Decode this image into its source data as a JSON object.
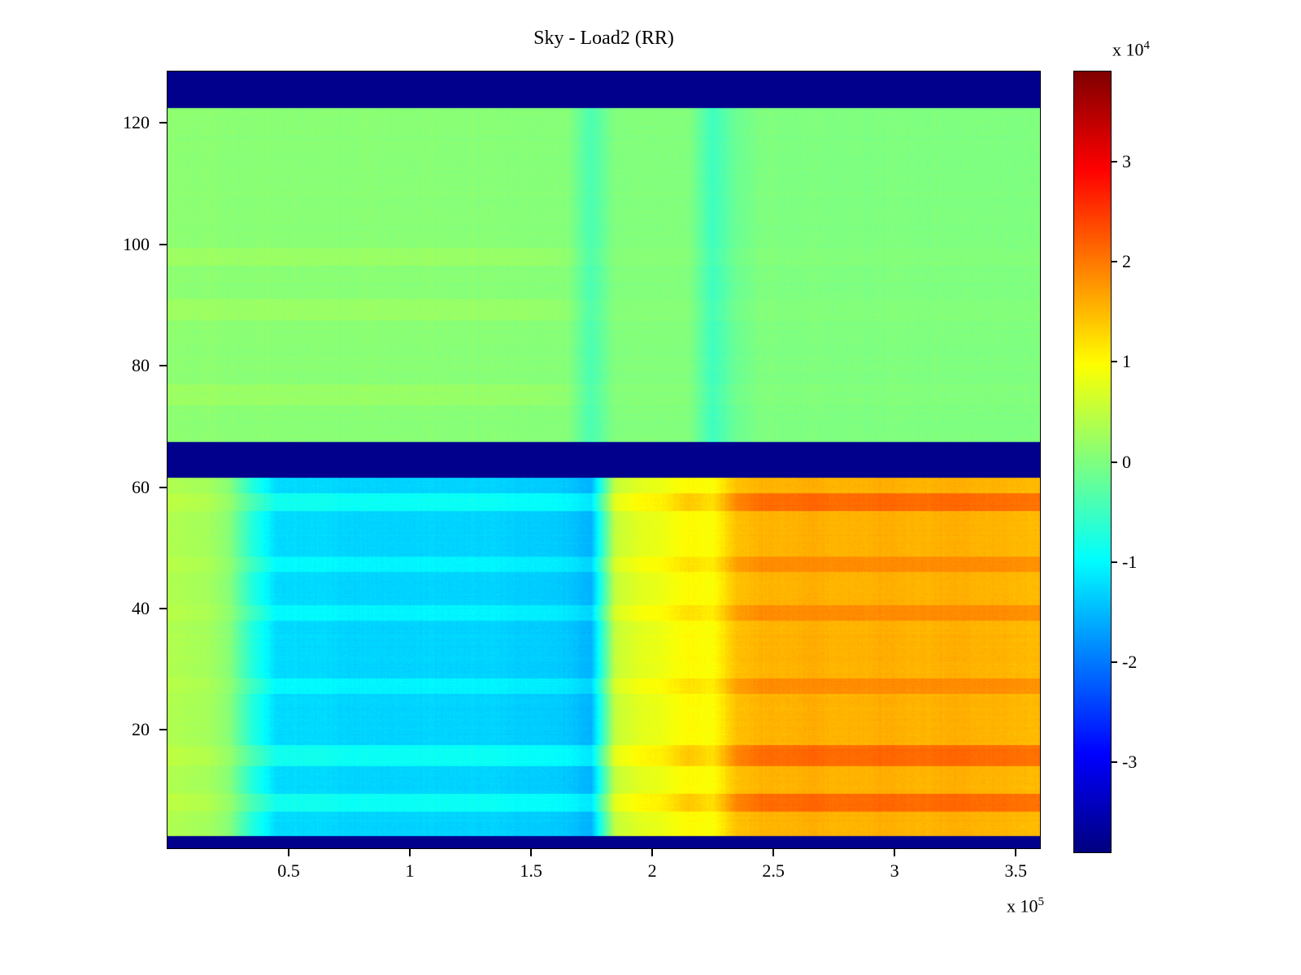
{
  "figure": {
    "background": "#ffffff"
  },
  "chart_data": {
    "type": "heatmap",
    "title": "Sky - Load2 (RR)",
    "colormap": "jet",
    "x_axis": {
      "range_x1e5": [
        0,
        3.6
      ],
      "ticks_x1e5": [
        0.5,
        1,
        1.5,
        2,
        2.5,
        3,
        3.5
      ],
      "tick_labels": [
        "0.5",
        "1",
        "1.5",
        "2",
        "2.5",
        "3",
        "3.5"
      ],
      "exponent_prefix": "x 10",
      "exponent_sup": "5"
    },
    "y_axis": {
      "range": [
        0.5,
        128.5
      ],
      "ticks": [
        20,
        40,
        60,
        80,
        100,
        120
      ],
      "tick_labels": [
        "20",
        "40",
        "60",
        "80",
        "100",
        "120"
      ]
    },
    "colorbar": {
      "range_x1e4": [
        -3.9,
        3.9
      ],
      "ticks_x1e4": [
        3,
        2,
        1,
        0,
        -1,
        -2,
        -3
      ],
      "tick_labels": [
        "3",
        "2",
        "1",
        "0",
        "-1",
        "-2",
        "-3"
      ],
      "exponent_prefix": "x 10",
      "exponent_sup": "4"
    },
    "values_unit_x1e4": true,
    "noise_amp_x1e4": 0.12,
    "grid": {
      "col_centers_x1e5": [
        0.05,
        0.15,
        0.25,
        0.35,
        0.45,
        0.55,
        0.65,
        0.75,
        0.85,
        0.95,
        1.05,
        1.15,
        1.25,
        1.35,
        1.45,
        1.55,
        1.65,
        1.75,
        1.85,
        1.95,
        2.05,
        2.15,
        2.25,
        2.35,
        2.45,
        2.55,
        2.65,
        2.75,
        2.85,
        2.95,
        3.05,
        3.15,
        3.25,
        3.35,
        3.45,
        3.55
      ],
      "profiles": {
        "dark": [
          -3.8,
          -3.8,
          -3.8,
          -3.8,
          -3.8,
          -3.8,
          -3.8,
          -3.8,
          -3.8,
          -3.8,
          -3.8,
          -3.8,
          -3.8,
          -3.8,
          -3.8,
          -3.8,
          -3.8,
          -3.8,
          -3.8,
          -3.8,
          -3.8,
          -3.8,
          -3.8,
          -3.8,
          -3.8,
          -3.8,
          -3.8,
          -3.8,
          -3.8,
          -3.8,
          -3.8,
          -3.8,
          -3.8,
          -3.8,
          -3.8,
          -3.8
        ],
        "upper_base": [
          0.1,
          0.1,
          0.09,
          0.08,
          0.08,
          0.08,
          0.08,
          0.08,
          0.08,
          0.08,
          0.07,
          0.07,
          0.07,
          0.07,
          0.06,
          0.06,
          0.05,
          -0.4,
          0.02,
          0.03,
          0.03,
          0.02,
          -0.5,
          -0.15,
          0.0,
          0.0,
          0.0,
          0.0,
          0.0,
          0.0,
          0.0,
          0.0,
          0.0,
          0.0,
          0.0,
          0.0
        ],
        "upper_streak": [
          0.22,
          0.22,
          0.21,
          0.2,
          0.2,
          0.2,
          0.2,
          0.2,
          0.2,
          0.2,
          0.19,
          0.19,
          0.19,
          0.18,
          0.18,
          0.17,
          0.12,
          -0.35,
          0.05,
          0.06,
          0.06,
          0.05,
          -0.45,
          -0.1,
          0.03,
          0.03,
          0.03,
          0.03,
          0.03,
          0.03,
          0.03,
          0.03,
          0.03,
          0.03,
          0.03,
          0.03
        ],
        "lower_base": [
          0.35,
          0.3,
          0.1,
          -0.7,
          -1.25,
          -1.25,
          -1.25,
          -1.3,
          -1.3,
          -1.3,
          -1.3,
          -1.3,
          -1.3,
          -1.3,
          -1.35,
          -1.35,
          -1.4,
          -1.55,
          0.55,
          0.75,
          0.85,
          1.0,
          0.95,
          1.45,
          1.55,
          1.55,
          1.6,
          1.55,
          1.55,
          1.6,
          1.55,
          1.55,
          1.6,
          1.55,
          1.55,
          1.5
        ],
        "lower_streak": [
          0.4,
          0.35,
          0.15,
          -0.5,
          -1.0,
          -1.0,
          -1.0,
          -1.05,
          -1.05,
          -1.05,
          -1.05,
          -1.05,
          -1.05,
          -1.05,
          -1.1,
          -1.1,
          -1.15,
          -1.3,
          0.7,
          0.9,
          1.0,
          1.2,
          1.1,
          1.7,
          1.85,
          1.85,
          1.85,
          1.85,
          1.85,
          1.85,
          1.85,
          1.85,
          1.85,
          1.85,
          1.85,
          1.8
        ],
        "lower_streak_strong": [
          0.45,
          0.4,
          0.2,
          -0.4,
          -0.85,
          -0.85,
          -0.85,
          -0.9,
          -0.9,
          -0.9,
          -0.9,
          -0.9,
          -0.9,
          -0.9,
          -0.95,
          -0.95,
          -1.0,
          -1.15,
          0.8,
          1.0,
          1.1,
          1.4,
          1.2,
          1.9,
          2.1,
          2.1,
          2.15,
          2.1,
          2.1,
          2.15,
          2.1,
          2.1,
          2.15,
          2.1,
          2.1,
          2.05
        ]
      },
      "row_bands": [
        {
          "from": 128.5,
          "to": 122.5,
          "profile": "dark"
        },
        {
          "from": 122.5,
          "to": 99.5,
          "profile": "upper_base"
        },
        {
          "from": 99.5,
          "to": 96.5,
          "profile": "upper_streak"
        },
        {
          "from": 96.5,
          "to": 91.0,
          "profile": "upper_base"
        },
        {
          "from": 91.0,
          "to": 87.5,
          "profile": "upper_streak"
        },
        {
          "from": 87.5,
          "to": 77.0,
          "profile": "upper_base"
        },
        {
          "from": 77.0,
          "to": 73.5,
          "profile": "upper_streak"
        },
        {
          "from": 73.5,
          "to": 67.5,
          "profile": "upper_base"
        },
        {
          "from": 67.5,
          "to": 61.5,
          "profile": "dark"
        },
        {
          "from": 61.5,
          "to": 59.0,
          "profile": "lower_base"
        },
        {
          "from": 59.0,
          "to": 56.0,
          "profile": "lower_streak_strong"
        },
        {
          "from": 56.0,
          "to": 48.5,
          "profile": "lower_base"
        },
        {
          "from": 48.5,
          "to": 46.0,
          "profile": "lower_streak"
        },
        {
          "from": 46.0,
          "to": 40.5,
          "profile": "lower_base"
        },
        {
          "from": 40.5,
          "to": 38.0,
          "profile": "lower_streak"
        },
        {
          "from": 38.0,
          "to": 28.5,
          "profile": "lower_base"
        },
        {
          "from": 28.5,
          "to": 26.0,
          "profile": "lower_streak"
        },
        {
          "from": 26.0,
          "to": 17.5,
          "profile": "lower_base"
        },
        {
          "from": 17.5,
          "to": 14.0,
          "profile": "lower_streak_strong"
        },
        {
          "from": 14.0,
          "to": 9.5,
          "profile": "lower_base"
        },
        {
          "from": 9.5,
          "to": 6.5,
          "profile": "lower_streak_strong"
        },
        {
          "from": 6.5,
          "to": 2.5,
          "profile": "lower_base"
        },
        {
          "from": 2.5,
          "to": 0.5,
          "profile": "dark"
        }
      ]
    }
  }
}
